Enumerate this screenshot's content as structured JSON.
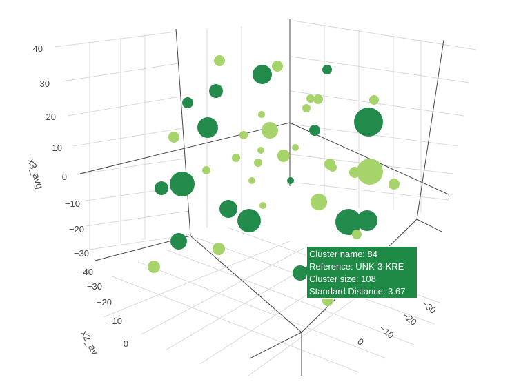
{
  "chart_data": {
    "type": "scatter",
    "dimensions": "3d",
    "axes": {
      "x3": {
        "title": "x3_avg",
        "ticks": [
          "40",
          "30",
          "20",
          "10",
          "0",
          "−10",
          "−20",
          "−30"
        ]
      },
      "x2": {
        "title": "x2_av",
        "ticks": [
          "−40",
          "−30",
          "−20",
          "−10",
          "0"
        ]
      },
      "x1": {
        "title": "",
        "ticks": [
          "−30",
          "−20",
          "−10",
          "0"
        ]
      }
    },
    "grid": true,
    "colors": {
      "dark": "#228a4a",
      "light": "#a6d46a",
      "frame": "#444444",
      "grid": "#d9d9d9"
    },
    "points": [
      {
        "sx": 318,
        "sy": 88,
        "size": 8,
        "group": "light"
      },
      {
        "sx": 402,
        "sy": 96,
        "size": 8,
        "group": "light"
      },
      {
        "sx": 380,
        "sy": 108,
        "size": 14,
        "group": "dark"
      },
      {
        "sx": 474,
        "sy": 101,
        "size": 7,
        "group": "dark"
      },
      {
        "sx": 313,
        "sy": 132,
        "size": 10,
        "group": "dark"
      },
      {
        "sx": 272,
        "sy": 149,
        "size": 8,
        "group": "dark"
      },
      {
        "sx": 450,
        "sy": 143,
        "size": 6,
        "group": "light"
      },
      {
        "sx": 461,
        "sy": 144,
        "size": 7,
        "group": "light"
      },
      {
        "sx": 444,
        "sy": 157,
        "size": 6,
        "group": "light"
      },
      {
        "sx": 542,
        "sy": 145,
        "size": 7,
        "group": "light"
      },
      {
        "sx": 379,
        "sy": 166,
        "size": 5,
        "group": "light"
      },
      {
        "sx": 534,
        "sy": 177,
        "size": 21,
        "group": "dark"
      },
      {
        "sx": 301,
        "sy": 185,
        "size": 15,
        "group": "dark"
      },
      {
        "sx": 391,
        "sy": 189,
        "size": 12,
        "group": "light"
      },
      {
        "sx": 456,
        "sy": 189,
        "size": 8,
        "group": "dark"
      },
      {
        "sx": 353,
        "sy": 196,
        "size": 6,
        "group": "light"
      },
      {
        "sx": 252,
        "sy": 199,
        "size": 8,
        "group": "light"
      },
      {
        "sx": 428,
        "sy": 214,
        "size": 5,
        "group": "light"
      },
      {
        "sx": 378,
        "sy": 218,
        "size": 5,
        "group": "light"
      },
      {
        "sx": 411,
        "sy": 226,
        "size": 9,
        "group": "light"
      },
      {
        "sx": 342,
        "sy": 229,
        "size": 6,
        "group": "light"
      },
      {
        "sx": 374,
        "sy": 236,
        "size": 6,
        "group": "light"
      },
      {
        "sx": 478,
        "sy": 238,
        "size": 8,
        "group": "light"
      },
      {
        "sx": 482,
        "sy": 243,
        "size": 6,
        "group": "light"
      },
      {
        "sx": 536,
        "sy": 249,
        "size": 19,
        "group": "light"
      },
      {
        "sx": 514,
        "sy": 250,
        "size": 8,
        "group": "light"
      },
      {
        "sx": 299,
        "sy": 247,
        "size": 6,
        "group": "light"
      },
      {
        "sx": 365,
        "sy": 262,
        "size": 5,
        "group": "light"
      },
      {
        "sx": 421,
        "sy": 262,
        "size": 5,
        "group": "dark"
      },
      {
        "sx": 571,
        "sy": 267,
        "size": 8,
        "group": "light"
      },
      {
        "sx": 234,
        "sy": 273,
        "size": 10,
        "group": "dark"
      },
      {
        "sx": 264,
        "sy": 267,
        "size": 18,
        "group": "dark"
      },
      {
        "sx": 462,
        "sy": 293,
        "size": 12,
        "group": "light"
      },
      {
        "sx": 381,
        "sy": 298,
        "size": 5,
        "group": "light"
      },
      {
        "sx": 331,
        "sy": 303,
        "size": 13,
        "group": "dark"
      },
      {
        "sx": 361,
        "sy": 320,
        "size": 17,
        "group": "dark"
      },
      {
        "sx": 505,
        "sy": 322,
        "size": 19,
        "group": "dark"
      },
      {
        "sx": 532,
        "sy": 320,
        "size": 15,
        "group": "dark"
      },
      {
        "sx": 517,
        "sy": 340,
        "size": 7,
        "group": "light"
      },
      {
        "sx": 259,
        "sy": 350,
        "size": 12,
        "group": "dark"
      },
      {
        "sx": 317,
        "sy": 361,
        "size": 9,
        "group": "light"
      },
      {
        "sx": 223,
        "sy": 387,
        "size": 9,
        "group": "light"
      },
      {
        "sx": 435,
        "sy": 396,
        "size": 11,
        "group": "dark"
      },
      {
        "sx": 475,
        "sy": 436,
        "size": 8,
        "group": "light"
      }
    ],
    "hover": {
      "lines": [
        "Cluster name: 84",
        "Reference: UNK-3-KRE",
        "Cluster size: 108",
        "Standard Distance: 3.67"
      ]
    }
  }
}
